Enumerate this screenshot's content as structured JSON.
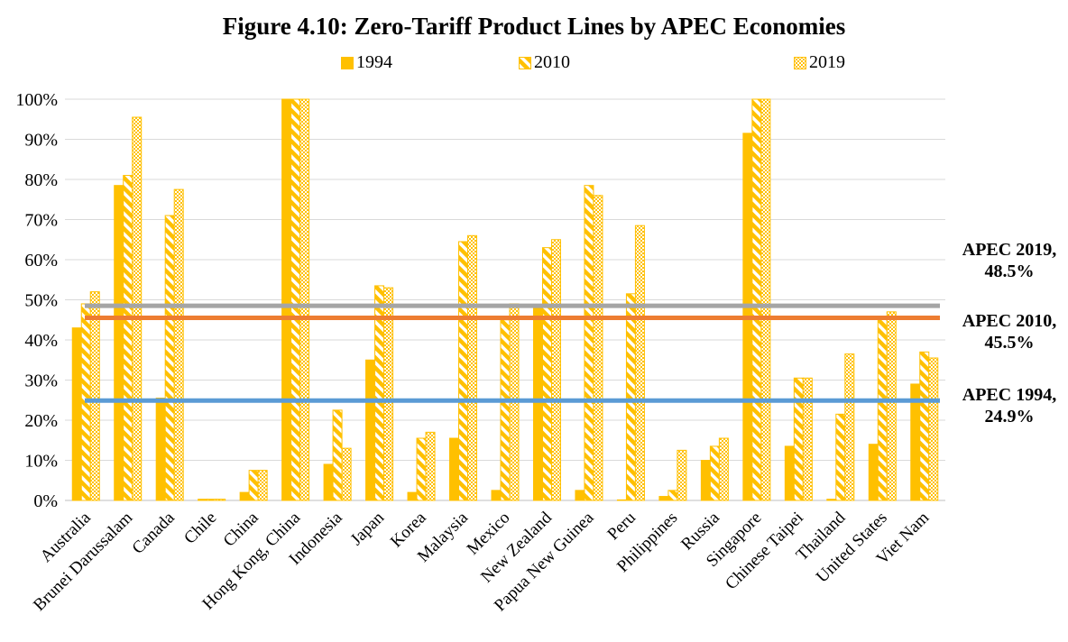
{
  "chart_data": {
    "type": "bar",
    "title": "Figure 4.10: Zero-Tariff Product Lines by APEC Economies",
    "xlabel": "",
    "ylabel": "",
    "ylim": [
      0,
      100
    ],
    "ytick_labels": [
      "0%",
      "10%",
      "20%",
      "30%",
      "40%",
      "50%",
      "60%",
      "70%",
      "80%",
      "90%",
      "100%"
    ],
    "grid": true,
    "legend_position": "top",
    "categories": [
      "Australia",
      "Brunei Darussalam",
      "Canada",
      "Chile",
      "China",
      "Hong Kong, China",
      "Indonesia",
      "Japan",
      "Korea",
      "Malaysia",
      "Mexico",
      "New Zealand",
      "Papua New Guinea",
      "Peru",
      "Philippines",
      "Russia",
      "Singapore",
      "Chinese Taipei",
      "Thailand",
      "United States",
      "Viet Nam"
    ],
    "series": [
      {
        "name": "1994",
        "pattern": "solid",
        "color": "#FFC000",
        "values": [
          43,
          78.5,
          25.5,
          0.3,
          2,
          100,
          9,
          35,
          2,
          15.5,
          2.5,
          48,
          2.5,
          0,
          1,
          10,
          91.5,
          13.5,
          0.3,
          14,
          29
        ]
      },
      {
        "name": "2010",
        "pattern": "diagonal",
        "color": "#FFC000",
        "values": [
          49,
          81,
          71,
          0.3,
          7.5,
          100,
          22.5,
          53.5,
          15.5,
          64.5,
          45,
          63,
          78.5,
          51.5,
          2.5,
          13.5,
          100,
          30.5,
          21.5,
          45.5,
          37
        ]
      },
      {
        "name": "2019",
        "pattern": "crosshatch",
        "color": "#FFC000",
        "values": [
          52,
          95.5,
          77.5,
          0.3,
          7.5,
          100,
          13,
          53,
          17,
          66,
          49,
          65,
          76,
          68.5,
          12.5,
          15.5,
          100,
          30.5,
          36.5,
          47,
          35.5
        ]
      }
    ],
    "reference_lines": [
      {
        "label_line1": "APEC 2019,",
        "label_line2": "48.5%",
        "value": 48.5,
        "color": "#A5A5A5"
      },
      {
        "label_line1": "APEC 2010,",
        "label_line2": "45.5%",
        "value": 45.5,
        "color": "#ED7D31"
      },
      {
        "label_line1": "APEC 1994,",
        "label_line2": "24.9%",
        "value": 24.9,
        "color": "#5B9BD5"
      }
    ]
  }
}
